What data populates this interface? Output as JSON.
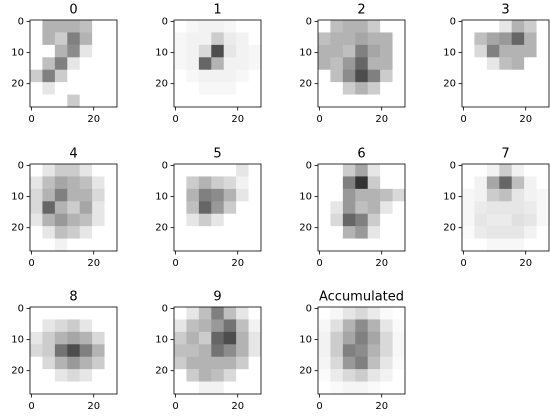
{
  "chart_data": [
    {
      "type": "heatmap",
      "title": "0",
      "cmap": "gray_r",
      "xlim": [
        -0.5,
        27.5
      ],
      "ylim": [
        27.5,
        -0.5
      ],
      "xticks": [
        0,
        20
      ],
      "yticks": [
        0,
        10,
        20
      ],
      "values": [
        [
          0,
          0.3,
          0.3,
          0.3,
          0.25,
          0,
          0
        ],
        [
          0,
          0.3,
          0.2,
          0.5,
          0.3,
          0,
          0
        ],
        [
          0,
          0,
          0.3,
          0.45,
          0.1,
          0,
          0
        ],
        [
          0,
          0.25,
          0.5,
          0.1,
          0,
          0,
          0
        ],
        [
          0.2,
          0.5,
          0.2,
          0,
          0,
          0,
          0
        ],
        [
          0,
          0.1,
          0,
          0,
          0,
          0,
          0
        ],
        [
          0,
          0,
          0,
          0.2,
          0,
          0,
          0
        ]
      ]
    },
    {
      "type": "heatmap",
      "title": "1",
      "cmap": "gray_r",
      "xlim": [
        -0.5,
        27.5
      ],
      "ylim": [
        27.5,
        -0.5
      ],
      "xticks": [
        0,
        20
      ],
      "yticks": [
        0,
        10,
        20
      ],
      "values": [
        [
          0,
          0.03,
          0.05,
          0.05,
          0.03,
          0,
          0
        ],
        [
          0.03,
          0.05,
          0.05,
          0.2,
          0.08,
          0.05,
          0
        ],
        [
          0.03,
          0.05,
          0.15,
          0.7,
          0.1,
          0.05,
          0.03
        ],
        [
          0.03,
          0.05,
          0.6,
          0.3,
          0.05,
          0.05,
          0.03
        ],
        [
          0,
          0.03,
          0.05,
          0.05,
          0.05,
          0.03,
          0
        ],
        [
          0,
          0,
          0.03,
          0.03,
          0.03,
          0,
          0
        ],
        [
          0,
          0,
          0,
          0,
          0,
          0,
          0
        ]
      ]
    },
    {
      "type": "heatmap",
      "title": "2",
      "cmap": "gray_r",
      "xlim": [
        -0.5,
        27.5
      ],
      "ylim": [
        27.5,
        -0.5
      ],
      "xticks": [
        0,
        20
      ],
      "yticks": [
        0,
        10,
        20
      ],
      "values": [
        [
          0,
          0.25,
          0.3,
          0.3,
          0.2,
          0,
          0
        ],
        [
          0.25,
          0.3,
          0.3,
          0.35,
          0.3,
          0.3,
          0
        ],
        [
          0.3,
          0.3,
          0.25,
          0.5,
          0.35,
          0.3,
          0
        ],
        [
          0.3,
          0.25,
          0.4,
          0.6,
          0.3,
          0.3,
          0
        ],
        [
          0,
          0.25,
          0.45,
          0.7,
          0.5,
          0.2,
          0
        ],
        [
          0,
          0,
          0.2,
          0.3,
          0.2,
          0,
          0
        ],
        [
          0,
          0,
          0,
          0,
          0,
          0,
          0
        ]
      ]
    },
    {
      "type": "heatmap",
      "title": "3",
      "cmap": "gray_r",
      "xlim": [
        -0.5,
        27.5
      ],
      "ylim": [
        27.5,
        -0.5
      ],
      "xticks": [
        0,
        20
      ],
      "yticks": [
        0,
        10,
        20
      ],
      "values": [
        [
          0,
          0,
          0,
          0.1,
          0.3,
          0.2,
          0
        ],
        [
          0,
          0.25,
          0.35,
          0.4,
          0.6,
          0.3,
          0
        ],
        [
          0,
          0.15,
          0.5,
          0.3,
          0.3,
          0.3,
          0
        ],
        [
          0,
          0,
          0.1,
          0.25,
          0.3,
          0,
          0
        ],
        [
          0,
          0,
          0,
          0,
          0,
          0,
          0
        ],
        [
          0,
          0,
          0,
          0,
          0,
          0,
          0
        ],
        [
          0,
          0,
          0,
          0,
          0,
          0,
          0
        ]
      ]
    },
    {
      "type": "heatmap",
      "title": "4",
      "cmap": "gray_r",
      "xlim": [
        -0.5,
        27.5
      ],
      "ylim": [
        27.5,
        -0.5
      ],
      "xticks": [
        0,
        20
      ],
      "yticks": [
        0,
        10,
        20
      ],
      "values": [
        [
          0,
          0.1,
          0.2,
          0.2,
          0.1,
          0,
          0
        ],
        [
          0.1,
          0.25,
          0.35,
          0.3,
          0.25,
          0.1,
          0
        ],
        [
          0.15,
          0.3,
          0.5,
          0.3,
          0.3,
          0.15,
          0
        ],
        [
          0.15,
          0.6,
          0.3,
          0.2,
          0.35,
          0.1,
          0
        ],
        [
          0.1,
          0.3,
          0.4,
          0.3,
          0.25,
          0.1,
          0
        ],
        [
          0,
          0.1,
          0.25,
          0.2,
          0.1,
          0,
          0
        ],
        [
          0,
          0,
          0.05,
          0,
          0,
          0,
          0
        ]
      ]
    },
    {
      "type": "heatmap",
      "title": "5",
      "cmap": "gray_r",
      "xlim": [
        -0.5,
        27.5
      ],
      "ylim": [
        27.5,
        -0.5
      ],
      "xticks": [
        0,
        20
      ],
      "yticks": [
        0,
        10,
        20
      ],
      "values": [
        [
          0,
          0,
          0,
          0,
          0,
          0.1,
          0
        ],
        [
          0,
          0.2,
          0.3,
          0.2,
          0.15,
          0.05,
          0
        ],
        [
          0,
          0.3,
          0.5,
          0.45,
          0.3,
          0.1,
          0
        ],
        [
          0,
          0.25,
          0.6,
          0.4,
          0.2,
          0,
          0
        ],
        [
          0,
          0.1,
          0.2,
          0.1,
          0,
          0,
          0
        ],
        [
          0,
          0,
          0,
          0,
          0,
          0,
          0
        ],
        [
          0,
          0,
          0,
          0,
          0,
          0,
          0
        ]
      ]
    },
    {
      "type": "heatmap",
      "title": "6",
      "cmap": "gray_r",
      "xlim": [
        -0.5,
        27.5
      ],
      "ylim": [
        27.5,
        -0.5
      ],
      "xticks": [
        0,
        20
      ],
      "yticks": [
        0,
        10,
        20
      ],
      "values": [
        [
          0,
          0,
          0.2,
          0.35,
          0.1,
          0,
          0
        ],
        [
          0,
          0,
          0.5,
          0.8,
          0.2,
          0,
          0
        ],
        [
          0,
          0,
          0.4,
          0.3,
          0.3,
          0.25,
          0.15
        ],
        [
          0,
          0.1,
          0.4,
          0.25,
          0.3,
          0.1,
          0
        ],
        [
          0,
          0.15,
          0.6,
          0.5,
          0.2,
          0,
          0
        ],
        [
          0,
          0,
          0.3,
          0.4,
          0.1,
          0,
          0
        ],
        [
          0,
          0,
          0,
          0,
          0,
          0,
          0
        ]
      ]
    },
    {
      "type": "heatmap",
      "title": "7",
      "cmap": "gray_r",
      "xlim": [
        -0.5,
        27.5
      ],
      "ylim": [
        27.5,
        -0.5
      ],
      "xticks": [
        0,
        20
      ],
      "yticks": [
        0,
        10,
        20
      ],
      "values": [
        [
          0,
          0,
          0.05,
          0.2,
          0.05,
          0,
          0
        ],
        [
          0,
          0.05,
          0.35,
          0.6,
          0.25,
          0.05,
          0
        ],
        [
          0.03,
          0.05,
          0.2,
          0.25,
          0.1,
          0.05,
          0.03
        ],
        [
          0.03,
          0.08,
          0.1,
          0.1,
          0.1,
          0.08,
          0.03
        ],
        [
          0.03,
          0.1,
          0.08,
          0.08,
          0.12,
          0.1,
          0.03
        ],
        [
          0.02,
          0.08,
          0.1,
          0.1,
          0.1,
          0.05,
          0
        ],
        [
          0,
          0,
          0.03,
          0.03,
          0.03,
          0,
          0
        ]
      ]
    },
    {
      "type": "heatmap",
      "title": "8",
      "cmap": "gray_r",
      "xlim": [
        -0.5,
        27.5
      ],
      "ylim": [
        27.5,
        -0.5
      ],
      "xticks": [
        0,
        20
      ],
      "yticks": [
        0,
        10,
        20
      ],
      "values": [
        [
          0,
          0,
          0,
          0,
          0,
          0,
          0
        ],
        [
          0,
          0.1,
          0.15,
          0.2,
          0.1,
          0,
          0
        ],
        [
          0.1,
          0.2,
          0.3,
          0.35,
          0.3,
          0.15,
          0
        ],
        [
          0.15,
          0.2,
          0.55,
          0.7,
          0.5,
          0.3,
          0
        ],
        [
          0,
          0.15,
          0.3,
          0.4,
          0.3,
          0.2,
          0
        ],
        [
          0,
          0,
          0.1,
          0.15,
          0.1,
          0,
          0
        ],
        [
          0,
          0,
          0,
          0,
          0,
          0,
          0
        ]
      ]
    },
    {
      "type": "heatmap",
      "title": "9",
      "cmap": "gray_r",
      "xlim": [
        -0.5,
        27.5
      ],
      "ylim": [
        27.5,
        -0.5
      ],
      "xticks": [
        0,
        20
      ],
      "yticks": [
        0,
        10,
        20
      ],
      "values": [
        [
          0,
          0.1,
          0.25,
          0.5,
          0.25,
          0.1,
          0
        ],
        [
          0.1,
          0.25,
          0.3,
          0.4,
          0.55,
          0.25,
          0.05
        ],
        [
          0.2,
          0.3,
          0.2,
          0.6,
          0.7,
          0.3,
          0.1
        ],
        [
          0.25,
          0.25,
          0.3,
          0.55,
          0.45,
          0.3,
          0.1
        ],
        [
          0.2,
          0.3,
          0.3,
          0.3,
          0.3,
          0.2,
          0
        ],
        [
          0,
          0.2,
          0.3,
          0.25,
          0.15,
          0,
          0
        ],
        [
          0,
          0,
          0.05,
          0.05,
          0,
          0,
          0
        ]
      ]
    },
    {
      "type": "heatmap",
      "title": "Accumulated",
      "cmap": "gray_r",
      "xlim": [
        -0.5,
        27.5
      ],
      "ylim": [
        27.5,
        -0.5
      ],
      "xticks": [
        0,
        20
      ],
      "yticks": [
        0,
        10,
        20
      ],
      "values": [
        [
          0,
          0.03,
          0.1,
          0.15,
          0.08,
          0.02,
          0
        ],
        [
          0.03,
          0.12,
          0.3,
          0.45,
          0.3,
          0.1,
          0.02
        ],
        [
          0.05,
          0.2,
          0.35,
          0.5,
          0.35,
          0.15,
          0.03
        ],
        [
          0.05,
          0.2,
          0.5,
          0.45,
          0.3,
          0.15,
          0.03
        ],
        [
          0.04,
          0.15,
          0.4,
          0.5,
          0.25,
          0.1,
          0.02
        ],
        [
          0.02,
          0.08,
          0.15,
          0.2,
          0.1,
          0.05,
          0
        ],
        [
          0,
          0.02,
          0.04,
          0.04,
          0.02,
          0,
          0
        ]
      ]
    }
  ]
}
